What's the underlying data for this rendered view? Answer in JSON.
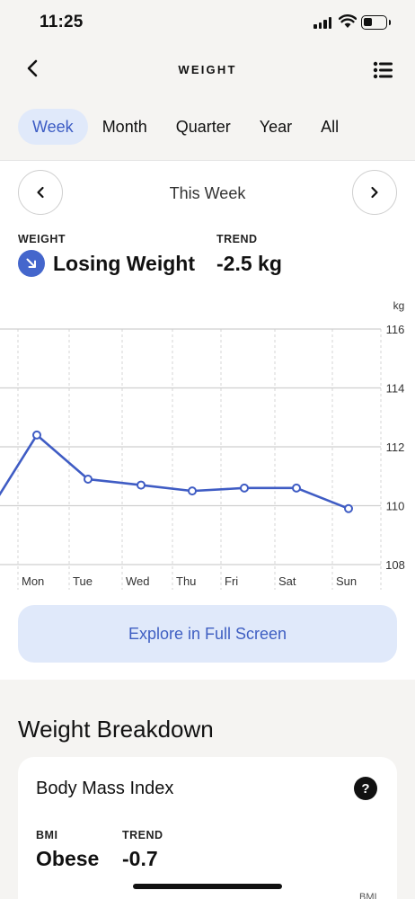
{
  "status_bar": {
    "time": "11:25"
  },
  "nav": {
    "title": "WEIGHT"
  },
  "tabs": [
    {
      "label": "Week",
      "active": true
    },
    {
      "label": "Month",
      "active": false
    },
    {
      "label": "Quarter",
      "active": false
    },
    {
      "label": "Year",
      "active": false
    },
    {
      "label": "All",
      "active": false
    }
  ],
  "period": {
    "label": "This Week"
  },
  "stats": {
    "weight_label": "WEIGHT",
    "weight_value": "Losing Weight",
    "trend_label": "TREND",
    "trend_value": "-2.5 kg"
  },
  "chart_data": {
    "type": "line",
    "unit": "kg",
    "categories": [
      "Mon",
      "Tue",
      "Wed",
      "Thu",
      "Fri",
      "Sat",
      "Sun"
    ],
    "values": [
      112.4,
      110.9,
      110.7,
      110.5,
      110.6,
      110.6,
      109.9
    ],
    "previous_value": 110.3,
    "ylim": [
      108,
      116
    ],
    "yticks": [
      116,
      114,
      112,
      110,
      108
    ],
    "grid": true,
    "line_color": "#3f5cc4"
  },
  "explore_button": {
    "label": "Explore in Full Screen"
  },
  "breakdown": {
    "title": "Weight Breakdown",
    "bmi_card": {
      "title": "Body Mass Index",
      "help_label": "?",
      "bmi_label": "BMI",
      "bmi_value": "Obese",
      "trend_label": "TREND",
      "trend_value": "-0.7",
      "axis_label": "BMI"
    }
  },
  "colors": {
    "accent": "#3f5cc4",
    "accent_light": "#e0e9fa",
    "background": "#f5f4f2"
  }
}
